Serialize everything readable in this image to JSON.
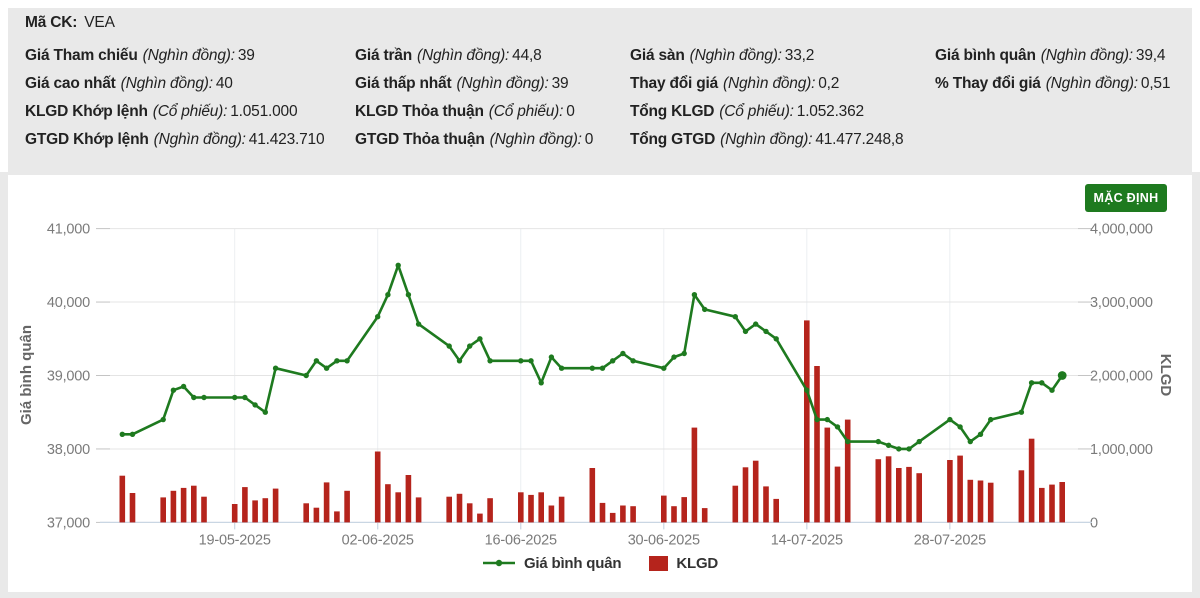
{
  "stock_info": {
    "ticker_label": "Mã CK:",
    "ticker": "VEA",
    "columns": [
      [
        {
          "label": "Giá Tham chiếu",
          "unit": "(Nghìn đồng):",
          "value": "39"
        },
        {
          "label": "Giá cao nhất",
          "unit": "(Nghìn đồng):",
          "value": "40"
        },
        {
          "label": "KLGD Khớp lệnh",
          "unit": "(Cổ phiếu):",
          "value": "1.051.000"
        },
        {
          "label": "GTGD Khớp lệnh",
          "unit": "(Nghìn đồng):",
          "value": "41.423.710"
        }
      ],
      [
        {
          "label": "Giá trần",
          "unit": "(Nghìn đồng):",
          "value": "44,8"
        },
        {
          "label": "Giá thấp nhất",
          "unit": "(Nghìn đồng):",
          "value": "39"
        },
        {
          "label": "KLGD Thỏa thuận",
          "unit": "(Cổ phiếu):",
          "value": "0"
        },
        {
          "label": "GTGD Thỏa thuận",
          "unit": "(Nghìn đồng):",
          "value": "0"
        }
      ],
      [
        {
          "label": "Giá sàn",
          "unit": "(Nghìn đồng):",
          "value": "33,2"
        },
        {
          "label": "Thay đổi giá",
          "unit": "(Nghìn đồng):",
          "value": "0,2"
        },
        {
          "label": "Tổng KLGD",
          "unit": "(Cổ phiếu):",
          "value": "1.052.362"
        },
        {
          "label": "Tổng GTGD",
          "unit": "(Nghìn đồng):",
          "value": "41.477.248,8"
        }
      ],
      [
        {
          "label": "Giá bình quân",
          "unit": "(Nghìn đồng):",
          "value": "39,4"
        },
        {
          "label": "% Thay đổi giá",
          "unit": "(Nghìn đồng):",
          "value": "0,51"
        }
      ]
    ]
  },
  "chart": {
    "button_label": "MẶC ĐỊNH",
    "y_left_title": "Giá bình quân",
    "y_right_title": "KLGD",
    "y_left_ticks": [
      "37,000",
      "38,000",
      "39,000",
      "40,000",
      "41,000"
    ],
    "y_right_ticks": [
      "0",
      "1,000,000",
      "2,000,000",
      "3,000,000",
      "4,000,000"
    ],
    "x_ticks": [
      "19-05-2025",
      "02-06-2025",
      "16-06-2025",
      "30-06-2025",
      "14-07-2025",
      "28-07-2025"
    ],
    "legend_price": "Giá bình quân",
    "legend_volume": "KLGD",
    "colors": {
      "line": "#1e7a1f",
      "bar": "#b5241c",
      "button": "#1e7a1f"
    }
  },
  "chart_data": {
    "type": "line+bar",
    "title": "",
    "x_label": "",
    "y_left_label": "Giá bình quân",
    "y_right_label": "KLGD",
    "y_left_range": [
      37000,
      41000
    ],
    "y_right_range": [
      0,
      4000000
    ],
    "grid": true,
    "legend_position": "bottom",
    "x": [
      "08-05-2025",
      "09-05-2025",
      "12-05-2025",
      "13-05-2025",
      "14-05-2025",
      "15-05-2025",
      "16-05-2025",
      "19-05-2025",
      "20-05-2025",
      "21-05-2025",
      "22-05-2025",
      "23-05-2025",
      "26-05-2025",
      "27-05-2025",
      "28-05-2025",
      "29-05-2025",
      "30-05-2025",
      "02-06-2025",
      "03-06-2025",
      "04-06-2025",
      "05-06-2025",
      "06-06-2025",
      "09-06-2025",
      "10-06-2025",
      "11-06-2025",
      "12-06-2025",
      "13-06-2025",
      "16-06-2025",
      "17-06-2025",
      "18-06-2025",
      "19-06-2025",
      "20-06-2025",
      "23-06-2025",
      "24-06-2025",
      "25-06-2025",
      "26-06-2025",
      "27-06-2025",
      "30-06-2025",
      "01-07-2025",
      "02-07-2025",
      "03-07-2025",
      "04-07-2025",
      "07-07-2025",
      "08-07-2025",
      "09-07-2025",
      "10-07-2025",
      "11-07-2025",
      "14-07-2025",
      "15-07-2025",
      "16-07-2025",
      "17-07-2025",
      "18-07-2025",
      "21-07-2025",
      "22-07-2025",
      "23-07-2025",
      "24-07-2025",
      "25-07-2025",
      "28-07-2025",
      "29-07-2025",
      "30-07-2025",
      "31-07-2025",
      "01-08-2025",
      "04-08-2025",
      "05-08-2025",
      "06-08-2025",
      "07-08-2025",
      "08-08-2025"
    ],
    "series": [
      {
        "name": "Giá bình quân",
        "type": "line",
        "axis": "left",
        "values": [
          38200,
          38200,
          38400,
          38800,
          38850,
          38700,
          38700,
          38700,
          38700,
          38600,
          38500,
          39100,
          39000,
          39200,
          39100,
          39200,
          39200,
          39800,
          40100,
          40500,
          40100,
          39700,
          39400,
          39200,
          39400,
          39500,
          39200,
          39200,
          39200,
          38900,
          39250,
          39100,
          39100,
          39100,
          39200,
          39300,
          39200,
          39100,
          39250,
          39300,
          40100,
          39900,
          39800,
          39600,
          39700,
          39600,
          39500,
          38800,
          38400,
          38400,
          38300,
          38100,
          38100,
          38050,
          38000,
          38000,
          38100,
          38400,
          38300,
          38100,
          38200,
          38400,
          38500,
          38900,
          38900,
          38800,
          39000
        ]
      },
      {
        "name": "KLGD",
        "type": "bar",
        "axis": "right",
        "values": [
          636000,
          400000,
          340000,
          430000,
          470000,
          500000,
          350000,
          250000,
          480000,
          300000,
          330000,
          460000,
          260000,
          200000,
          545000,
          150000,
          430000,
          965000,
          520000,
          410000,
          645000,
          340000,
          350000,
          390000,
          260000,
          120000,
          330000,
          410000,
          375000,
          410000,
          230000,
          350000,
          740000,
          265000,
          130000,
          230000,
          220000,
          365000,
          220000,
          345000,
          1290000,
          195000,
          500000,
          750000,
          840000,
          490000,
          320000,
          2750000,
          2130000,
          1290000,
          760000,
          1400000,
          860000,
          900000,
          740000,
          755000,
          670000,
          850000,
          910000,
          580000,
          570000,
          540000,
          710000,
          1140000,
          470000,
          515000,
          550000
        ]
      }
    ]
  }
}
